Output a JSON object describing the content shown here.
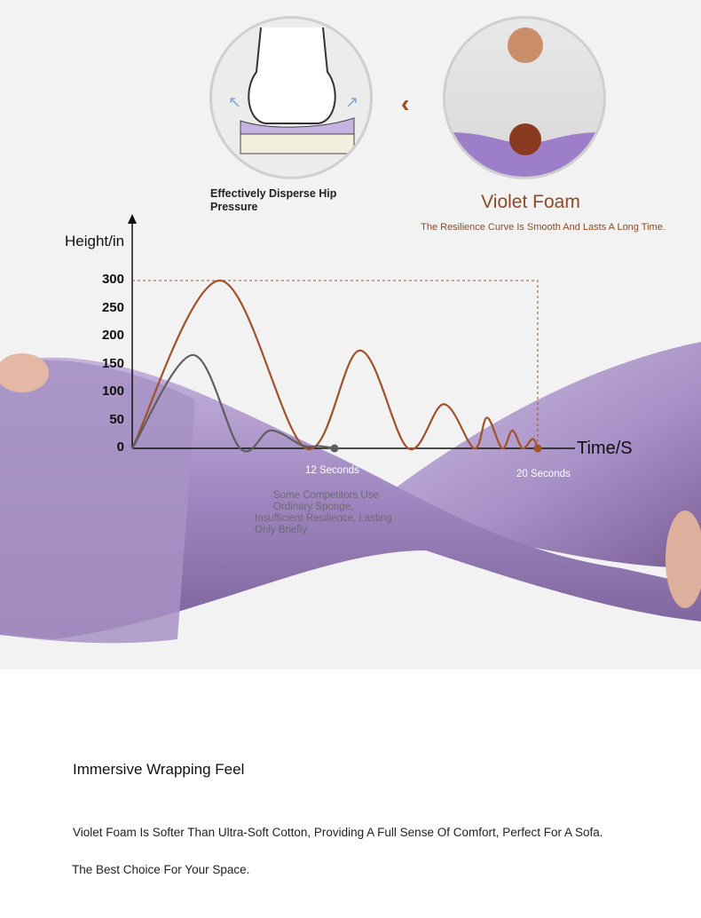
{
  "feature_left": {
    "caption": "Effectively Disperse Hip Pressure"
  },
  "feature_right": {
    "title": "Violet Foam",
    "subtitle": "The Resilience Curve Is Smooth And Lasts A Long Time."
  },
  "colors": {
    "violet_foam": "#a0522d",
    "competitor": "#5e5e60",
    "brand_text": "#8c4a28",
    "foam": "#9d86bd"
  },
  "chart_data": {
    "type": "line",
    "ylabel": "Height/in",
    "xlabel": "Time/S",
    "ylim": [
      0,
      300
    ],
    "yticks": [
      0,
      50,
      100,
      150,
      200,
      250,
      300
    ],
    "grid": false,
    "series": [
      {
        "key": "violet",
        "x": [
          0,
          5.2,
          10.3,
          13.0,
          14.9,
          16.3,
          17.5,
          18.0,
          18.6,
          19.0,
          19.4,
          19.8,
          20
        ],
        "y": [
          0,
          300,
          0,
          175,
          0,
          79,
          0,
          55,
          0,
          32,
          0,
          17,
          0
        ]
      },
      {
        "key": "competitor",
        "x": [
          0,
          3.6,
          6.4,
          8.2,
          10.1,
          11.1,
          12
        ],
        "y": [
          0,
          167,
          0,
          32,
          5,
          4,
          0
        ]
      }
    ],
    "reference_box": {
      "x_end": 20,
      "y_top": 300
    },
    "annotations": [
      {
        "x": 12,
        "text": "12 Seconds"
      },
      {
        "x": 20,
        "text": "20 Seconds"
      }
    ],
    "competitor_note": [
      "Some Competitors Use",
      "Ordinary Sponge,",
      "Insufficient Resilience, Lasting",
      "Only Briefly"
    ]
  },
  "section": {
    "title": "Immersive Wrapping Feel",
    "body": "Violet Foam Is Softer Than Ultra-Soft Cotton, Providing A Full Sense Of Comfort, Perfect For A Sofa.",
    "footer": "The Best Choice For Your Space."
  }
}
